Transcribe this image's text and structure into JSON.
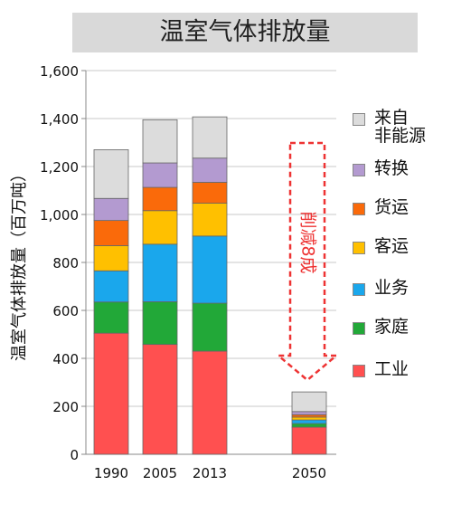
{
  "chart_data": {
    "type": "bar",
    "stacked": true,
    "title": "温室气体排放量",
    "ylabel": "温室气体排放量（百万吨）",
    "categories": [
      "1990",
      "2005",
      "2013",
      "2050"
    ],
    "ylim": [
      0,
      1600
    ],
    "yticks": [
      "0",
      "200",
      "400",
      "600",
      "800",
      "1,000",
      "1,200",
      "1,400",
      "1,600"
    ],
    "grid": true,
    "legend_position": "right",
    "series": [
      {
        "name": "工业",
        "color": "#ff5050",
        "values": [
          505,
          458,
          430,
          113
        ]
      },
      {
        "name": "家庭",
        "color": "#22a838",
        "values": [
          130,
          178,
          200,
          15
        ]
      },
      {
        "name": "业务",
        "color": "#1aa7ec",
        "values": [
          130,
          240,
          280,
          15
        ]
      },
      {
        "name": "客运",
        "color": "#ffc000",
        "values": [
          105,
          140,
          137,
          12
        ]
      },
      {
        "name": "货运",
        "color": "#fa6a0a",
        "values": [
          105,
          97,
          87,
          10
        ]
      },
      {
        "name": "转换",
        "color": "#b39ad0",
        "values": [
          92,
          102,
          101,
          13
        ]
      },
      {
        "name": "来自\n非能源",
        "color": "#dcdcdc",
        "values": [
          203,
          180,
          172,
          82
        ]
      }
    ],
    "annotation": {
      "text": "削减8成",
      "color": "#ee3333"
    }
  }
}
